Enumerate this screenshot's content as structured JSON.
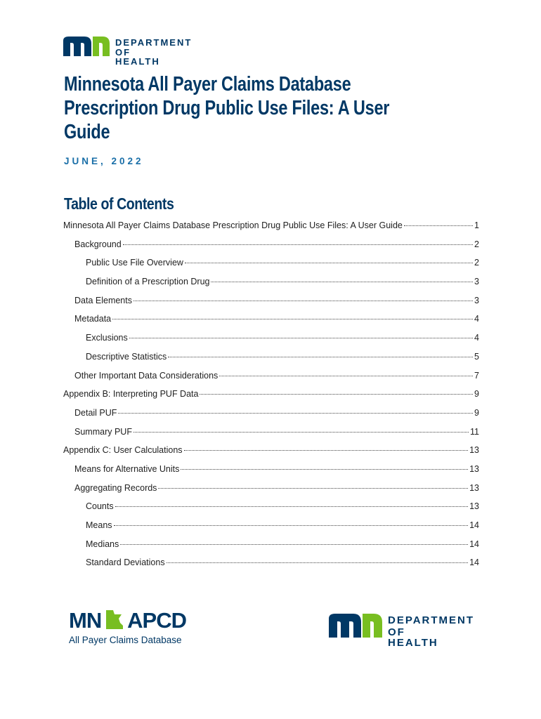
{
  "header": {
    "logo_line1": "DEPARTMENT",
    "logo_line2": "OF HEALTH"
  },
  "title_lines": [
    "Minnesota All Payer Claims Database",
    "Prescription Drug Public Use Files: A User",
    "Guide"
  ],
  "date": "JUNE, 2022",
  "toc": {
    "heading": "Table of Contents",
    "entries": [
      {
        "text": "Minnesota All Payer Claims Database Prescription Drug Public Use Files: A User Guide",
        "page": 1,
        "children": [
          {
            "text": "Background",
            "page": 2,
            "children": [
              {
                "text": "Public Use File Overview",
                "page": 2
              },
              {
                "text": "Definition of a Prescription Drug",
                "page": 3
              }
            ]
          },
          {
            "text": "Data Elements",
            "page": 3
          },
          {
            "text": "Metadata",
            "page": 4,
            "children": [
              {
                "text": "Exclusions",
                "page": 4
              },
              {
                "text": "Descriptive Statistics",
                "page": 5
              }
            ]
          },
          {
            "text": "Other Important Data Considerations",
            "page": 7
          }
        ]
      },
      {
        "text": "Appendix B: Interpreting PUF Data",
        "page": 9,
        "children": [
          {
            "text": "Detail PUF",
            "page": 9
          },
          {
            "text": "Summary PUF",
            "page": 11
          }
        ]
      },
      {
        "text": "Appendix C: User Calculations",
        "page": 13,
        "children": [
          {
            "text": "Means for Alternative Units",
            "page": 13
          },
          {
            "text": "Aggregating Records",
            "page": 13,
            "children": [
              {
                "text": "Counts",
                "page": 13
              },
              {
                "text": "Means",
                "page": 14
              },
              {
                "text": "Medians",
                "page": 14
              },
              {
                "text": "Standard Deviations",
                "page": 14
              }
            ]
          }
        ]
      }
    ]
  },
  "footer": {
    "apcd_left": "MN",
    "apcd_right": "APCD",
    "apcd_tagline": "All Payer Claims Database",
    "mdh_line1": "DEPARTMENT",
    "mdh_line2": "OF HEALTH"
  }
}
